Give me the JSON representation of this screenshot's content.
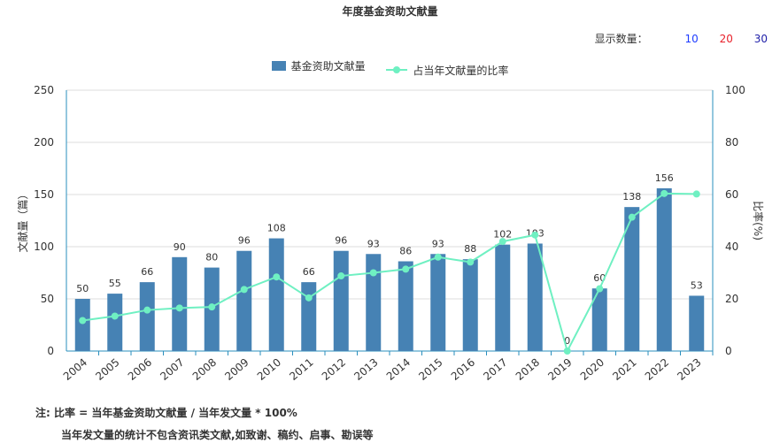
{
  "title": "年度基金资助文献量",
  "display_count": {
    "label": "显示数量：",
    "options": [
      {
        "value": "10",
        "color": "#1e3cff"
      },
      {
        "value": "20",
        "color": "#e8202a"
      },
      {
        "value": "30",
        "color": "#1e1ea8"
      }
    ]
  },
  "legend": {
    "bar_label": "基金资助文献量",
    "line_label": "占当年文献量的比率"
  },
  "notes": {
    "line1": "注:   比率 = 当年基金资助文献量 / 当年发文量 * 100%",
    "line2": "当年发文量的统计不包含资讯类文献,如致谢、稿约、启事、勘误等"
  },
  "colors": {
    "bar": "#4682b4",
    "line": "#6ff0c2",
    "axis": "#2a8fbd",
    "grid": "#dddddd"
  },
  "chart_data": {
    "type": "bar",
    "title": "年度基金资助文献量",
    "categories": [
      "2004",
      "2005",
      "2006",
      "2007",
      "2008",
      "2009",
      "2010",
      "2011",
      "2012",
      "2013",
      "2014",
      "2015",
      "2016",
      "2017",
      "2018",
      "2019",
      "2020",
      "2021",
      "2022",
      "2023"
    ],
    "series": [
      {
        "name": "基金资助文献量",
        "type": "bar",
        "axis": "left",
        "values": [
          50,
          55,
          66,
          90,
          80,
          96,
          108,
          66,
          96,
          93,
          86,
          93,
          88,
          102,
          103,
          0,
          60,
          138,
          156,
          53
        ]
      },
      {
        "name": "占当年文献量的比率",
        "type": "line",
        "axis": "right",
        "values": [
          11.7,
          13.4,
          15.7,
          16.5,
          16.9,
          23.6,
          28.4,
          20.4,
          28.8,
          30.0,
          31.4,
          36.0,
          34.1,
          42.0,
          44.5,
          0,
          23.9,
          51.3,
          60.4,
          60.2
        ]
      }
    ],
    "ylabel": "文献量（篇）",
    "ylabel_right": "比率(%)",
    "ylim": [
      0,
      250
    ],
    "y_ticks": [
      0,
      50,
      100,
      150,
      200,
      250
    ],
    "ylim_right": [
      0,
      100
    ],
    "y_ticks_right": [
      0,
      20,
      40,
      60,
      80,
      100
    ],
    "grid": true,
    "legend_position": "top-center"
  }
}
